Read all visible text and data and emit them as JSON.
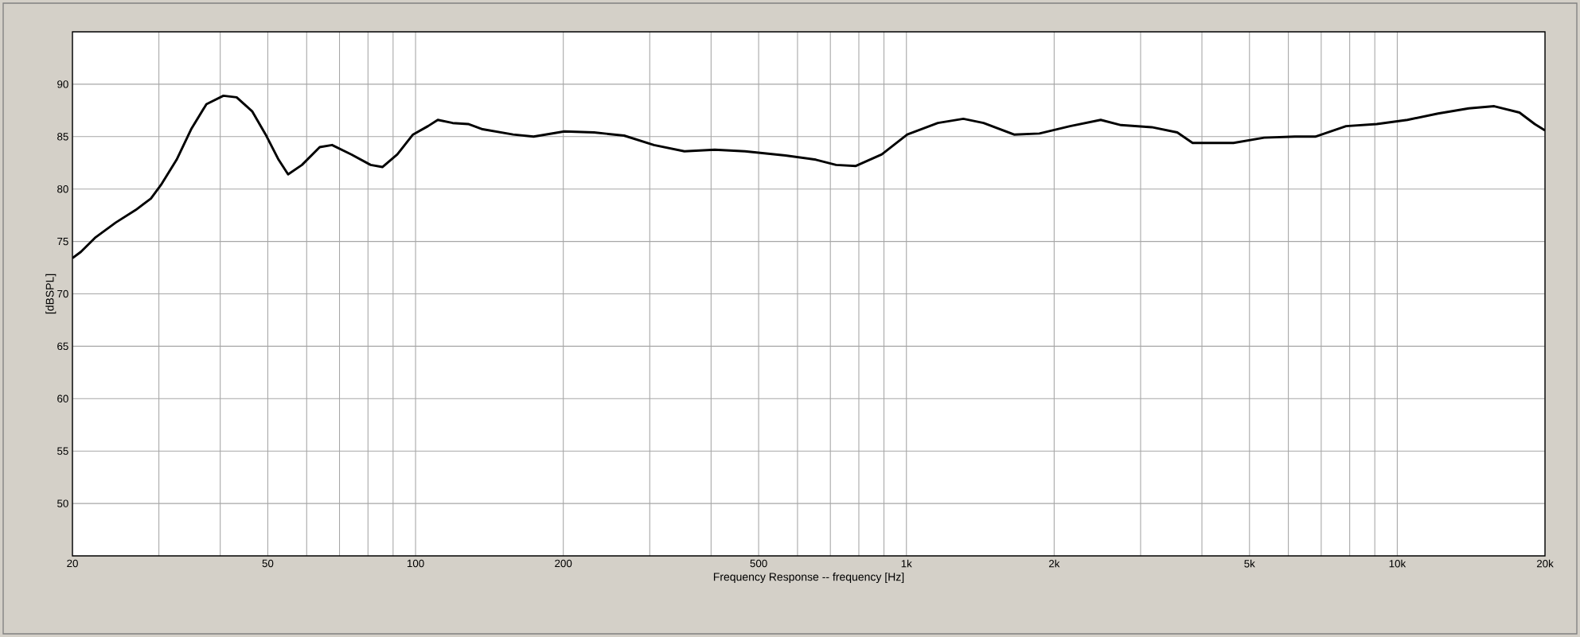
{
  "chart_data": {
    "type": "line",
    "xlabel": "Frequency Response -- frequency [Hz]",
    "ylabel": "[dBSPL]",
    "xlim": [
      20,
      20000
    ],
    "ylim": [
      45,
      95
    ],
    "xticks": [
      20,
      {
        "value": 30,
        "label": null
      },
      {
        "value": 40,
        "label": null
      },
      50,
      {
        "value": 60,
        "label": null
      },
      {
        "value": 70,
        "label": null
      },
      {
        "value": 80,
        "label": null
      },
      {
        "value": 90,
        "label": null
      },
      100,
      200,
      {
        "value": 300,
        "label": null
      },
      {
        "value": 400,
        "label": null
      },
      500,
      {
        "value": 600,
        "label": null
      },
      {
        "value": 700,
        "label": null
      },
      {
        "value": 800,
        "label": null
      },
      {
        "value": 900,
        "label": null
      },
      {
        "value": 1000,
        "label": "1k"
      },
      {
        "value": 2000,
        "label": "2k"
      },
      {
        "value": 3000,
        "label": null
      },
      {
        "value": 4000,
        "label": null
      },
      {
        "value": 5000,
        "label": "5k"
      },
      {
        "value": 6000,
        "label": null
      },
      {
        "value": 7000,
        "label": null
      },
      {
        "value": 8000,
        "label": null
      },
      {
        "value": 9000,
        "label": null
      },
      {
        "value": 10000,
        "label": "10k"
      },
      {
        "value": 20000,
        "label": "20k"
      }
    ],
    "yticks": [
      50,
      55,
      60,
      65,
      70,
      75,
      80,
      85,
      90
    ],
    "log": "x",
    "grid": true,
    "marker": "none",
    "line_style": "solid",
    "series": [
      {
        "color": "#000000",
        "x": [
          20,
          20.8,
          22.3,
          24.5,
          26.9,
          28.9,
          30.3,
          32.6,
          34.9,
          37.5,
          40.6,
          43.2,
          46.5,
          49.5,
          52.6,
          55,
          58.7,
          63.8,
          67.6,
          74,
          81,
          85.6,
          91.8,
          98.8,
          106,
          111,
          119,
          128,
          137,
          158,
          174,
          201,
          231,
          266,
          306,
          353,
          407,
          469,
          567,
          654,
          719,
          789,
          891,
          1004,
          1159,
          1306,
          1436,
          1657,
          1866,
          2155,
          2488,
          2737,
          3160,
          3563,
          3829,
          4637,
          5355,
          6185,
          6809,
          7866,
          9083,
          10490,
          12110,
          13990,
          15760,
          17740,
          19060,
          20000
        ],
        "values": [
          73.4,
          74.0,
          75.4,
          76.8,
          78.0,
          79.1,
          80.4,
          82.8,
          85.7,
          88.1,
          88.9,
          88.75,
          87.4,
          85.2,
          82.8,
          81.4,
          82.3,
          84.0,
          84.2,
          83.3,
          82.3,
          82.1,
          83.3,
          85.2,
          86.0,
          86.6,
          86.3,
          86.2,
          85.7,
          85.2,
          85.0,
          85.5,
          85.4,
          85.1,
          84.2,
          83.6,
          83.75,
          83.6,
          83.2,
          82.8,
          82.3,
          82.2,
          83.3,
          85.2,
          86.3,
          86.7,
          86.3,
          85.2,
          85.3,
          86.0,
          86.6,
          86.1,
          85.9,
          85.4,
          84.4,
          84.4,
          84.9,
          85.0,
          85.0,
          86.0,
          86.2,
          86.6,
          87.2,
          87.7,
          87.9,
          87.3,
          86.2,
          85.6
        ]
      }
    ]
  }
}
